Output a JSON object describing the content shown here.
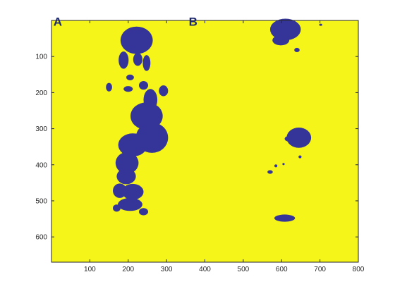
{
  "chart_data": {
    "type": "heatmap",
    "title": "",
    "xlabel": "",
    "ylabel": "",
    "xlim": [
      0,
      800
    ],
    "ylim": [
      670,
      0
    ],
    "y_reversed": true,
    "grid": false,
    "x_ticks": [
      100,
      200,
      300,
      400,
      500,
      600,
      700,
      800
    ],
    "y_ticks": [
      100,
      200,
      300,
      400,
      500,
      600
    ],
    "background_color": "#f5f51a",
    "region_color": "#353599",
    "annotations": [
      {
        "text": "A",
        "x": 5,
        "y": 15
      },
      {
        "text": "B",
        "x": 358,
        "y": 15
      }
    ],
    "regions": [
      {
        "x": 222,
        "y": 55,
        "rx": 42,
        "ry": 38
      },
      {
        "x": 225,
        "y": 108,
        "rx": 12,
        "ry": 18
      },
      {
        "x": 188,
        "y": 110,
        "rx": 13,
        "ry": 24
      },
      {
        "x": 248,
        "y": 118,
        "rx": 10,
        "ry": 22
      },
      {
        "x": 205,
        "y": 158,
        "rx": 10,
        "ry": 8
      },
      {
        "x": 150,
        "y": 185,
        "rx": 8,
        "ry": 12
      },
      {
        "x": 200,
        "y": 190,
        "rx": 12,
        "ry": 8
      },
      {
        "x": 240,
        "y": 180,
        "rx": 12,
        "ry": 12
      },
      {
        "x": 292,
        "y": 195,
        "rx": 12,
        "ry": 15
      },
      {
        "x": 258,
        "y": 220,
        "rx": 18,
        "ry": 30
      },
      {
        "x": 248,
        "y": 265,
        "rx": 42,
        "ry": 38
      },
      {
        "x": 262,
        "y": 325,
        "rx": 42,
        "ry": 42
      },
      {
        "x": 212,
        "y": 345,
        "rx": 38,
        "ry": 32
      },
      {
        "x": 197,
        "y": 395,
        "rx": 30,
        "ry": 30
      },
      {
        "x": 195,
        "y": 432,
        "rx": 25,
        "ry": 22
      },
      {
        "x": 178,
        "y": 472,
        "rx": 18,
        "ry": 20
      },
      {
        "x": 212,
        "y": 475,
        "rx": 28,
        "ry": 22
      },
      {
        "x": 205,
        "y": 510,
        "rx": 32,
        "ry": 18
      },
      {
        "x": 170,
        "y": 520,
        "rx": 10,
        "ry": 10
      },
      {
        "x": 240,
        "y": 530,
        "rx": 12,
        "ry": 10
      },
      {
        "x": 610,
        "y": 25,
        "rx": 40,
        "ry": 30
      },
      {
        "x": 598,
        "y": 55,
        "rx": 22,
        "ry": 14
      },
      {
        "x": 640,
        "y": 82,
        "rx": 7,
        "ry": 6
      },
      {
        "x": 645,
        "y": 325,
        "rx": 32,
        "ry": 28
      },
      {
        "x": 620,
        "y": 328,
        "rx": 12,
        "ry": 8
      },
      {
        "x": 608,
        "y": 548,
        "rx": 27,
        "ry": 10
      },
      {
        "x": 570,
        "y": 420,
        "rx": 7,
        "ry": 5
      },
      {
        "x": 585,
        "y": 403,
        "rx": 4,
        "ry": 4
      },
      {
        "x": 605,
        "y": 398,
        "rx": 3,
        "ry": 3
      },
      {
        "x": 648,
        "y": 378,
        "rx": 4,
        "ry": 4
      },
      {
        "x": 702,
        "y": 12,
        "rx": 4,
        "ry": 3
      }
    ]
  }
}
